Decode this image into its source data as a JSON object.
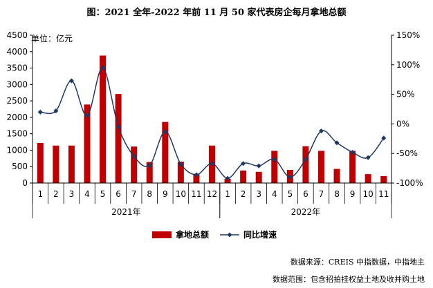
{
  "chart_data": {
    "type": "bar",
    "title": "图：2021 全年-2022 年前 11 月 50 家代表房企每月拿地总额",
    "unit_label": "单位：亿元",
    "categories": [
      "1",
      "2",
      "3",
      "4",
      "5",
      "6",
      "7",
      "8",
      "9",
      "10",
      "11",
      "12",
      "1",
      "2",
      "3",
      "4",
      "5",
      "6",
      "7",
      "8",
      "9",
      "10",
      "11"
    ],
    "year_groups": [
      {
        "label": "2021年",
        "start": 0,
        "count": 12
      },
      {
        "label": "2022年",
        "start": 12,
        "count": 11
      }
    ],
    "series": [
      {
        "name": "拿地总额",
        "kind": "bar",
        "axis": "left",
        "color": "#c00000",
        "values": [
          1220,
          1140,
          1140,
          2390,
          3880,
          2710,
          1110,
          640,
          1860,
          650,
          280,
          1140,
          130,
          380,
          340,
          980,
          400,
          1120,
          980,
          430,
          980,
          270,
          210
        ]
      },
      {
        "name": "同比增速",
        "kind": "line",
        "axis": "right",
        "color": "#1f3864",
        "values": [
          20,
          22,
          73,
          14,
          95,
          -5,
          -55,
          -70,
          -13,
          -68,
          -86,
          -67,
          -92,
          -67,
          -71,
          -60,
          -90,
          -60,
          -12,
          -32,
          -48,
          -57,
          -24
        ]
      }
    ],
    "left_axis": {
      "ylim": [
        0,
        4500
      ],
      "ticks": [
        0,
        500,
        1000,
        1500,
        2000,
        2500,
        3000,
        3500,
        4000,
        4500
      ]
    },
    "right_axis": {
      "ylim": [
        -100,
        150
      ],
      "ticks": [
        -100,
        -50,
        0,
        50,
        100,
        150
      ],
      "tick_labels": [
        "-100%",
        "-50%",
        "0%",
        "50%",
        "100%",
        "150%"
      ]
    },
    "legend_position": "bottom"
  },
  "footer": {
    "source": "数据来源：CREIS 中指数据，中指地主",
    "scope": "数据范围：包含招拍挂权益土地及收并购土地"
  }
}
